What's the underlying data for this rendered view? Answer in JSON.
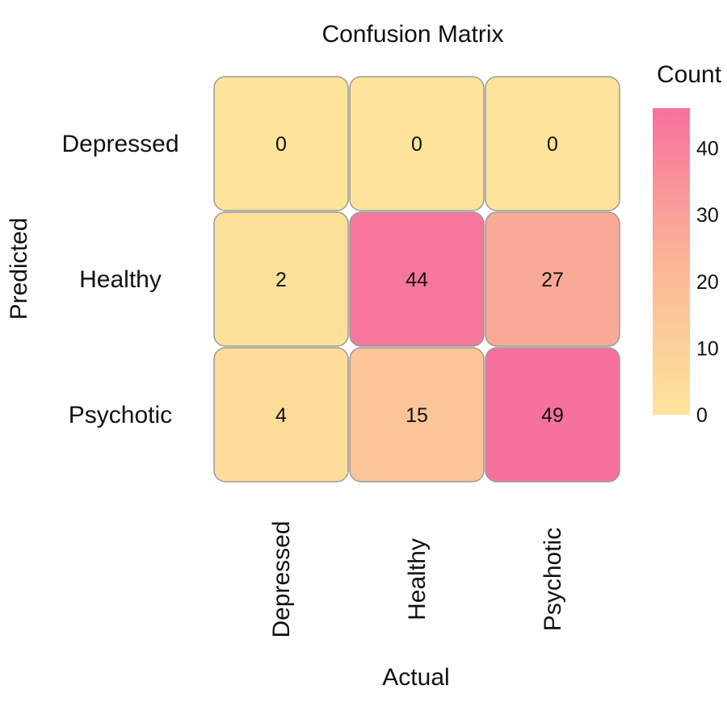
{
  "chart_data": {
    "type": "heatmap",
    "title": "Confusion Matrix",
    "xlabel": "Actual",
    "ylabel": "Predicted",
    "x_categories": [
      "Depressed",
      "Healthy",
      "Psychotic"
    ],
    "y_categories": [
      "Depressed",
      "Healthy",
      "Psychotic"
    ],
    "values": [
      [
        0,
        0,
        0
      ],
      [
        2,
        44,
        27
      ],
      [
        4,
        15,
        49
      ]
    ],
    "colorbar": {
      "title": "Count",
      "range": [
        0,
        46
      ],
      "ticks": [
        0,
        10,
        20,
        30,
        40
      ],
      "color_low": "#fde49a",
      "color_mid": "#fbb596",
      "color_high": "#f7719e"
    },
    "grid": false
  }
}
